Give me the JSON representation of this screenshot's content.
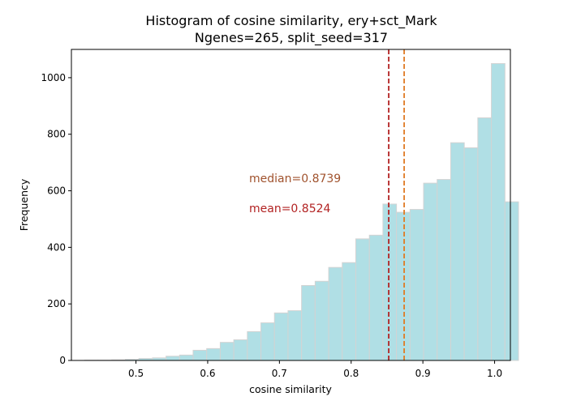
{
  "chart_data": {
    "type": "histogram",
    "title_line1": "Histogram of cosine similarity, ery+sct_Mark",
    "title_line2": "Ngenes=265, split_seed=317",
    "xlabel": "cosine similarity",
    "ylabel": "Frequency",
    "xlim": [
      0.41,
      1.022
    ],
    "ylim": [
      0,
      1100
    ],
    "x_ticks": [
      0.5,
      0.6,
      0.7,
      0.8,
      0.9,
      1.0
    ],
    "x_tick_labels": [
      "0.5",
      "0.6",
      "0.7",
      "0.8",
      "0.9",
      "1.0"
    ],
    "y_ticks": [
      0,
      200,
      400,
      600,
      800,
      1000
    ],
    "y_tick_labels": [
      "0",
      "200",
      "400",
      "600",
      "800",
      "1000"
    ],
    "bin_start": 0.4285,
    "bin_width": 0.0189,
    "values": [
      1,
      1,
      2,
      4,
      7,
      9,
      15,
      19,
      36,
      42,
      64,
      73,
      102,
      133,
      168,
      176,
      265,
      280,
      329,
      346,
      430,
      443,
      553,
      524,
      534,
      627,
      640,
      770,
      752,
      858,
      1050,
      561
    ],
    "bar_color": "#b0dfe5",
    "bar_edge_color": "#d3d3d3",
    "mean": {
      "value": 0.8524,
      "label": "mean=0.8524",
      "color": "#b22222"
    },
    "median": {
      "value": 0.8739,
      "label": "median=0.8739",
      "color": "#e07b24",
      "label_color": "#a0522d"
    },
    "grid": false,
    "legend": "none"
  }
}
